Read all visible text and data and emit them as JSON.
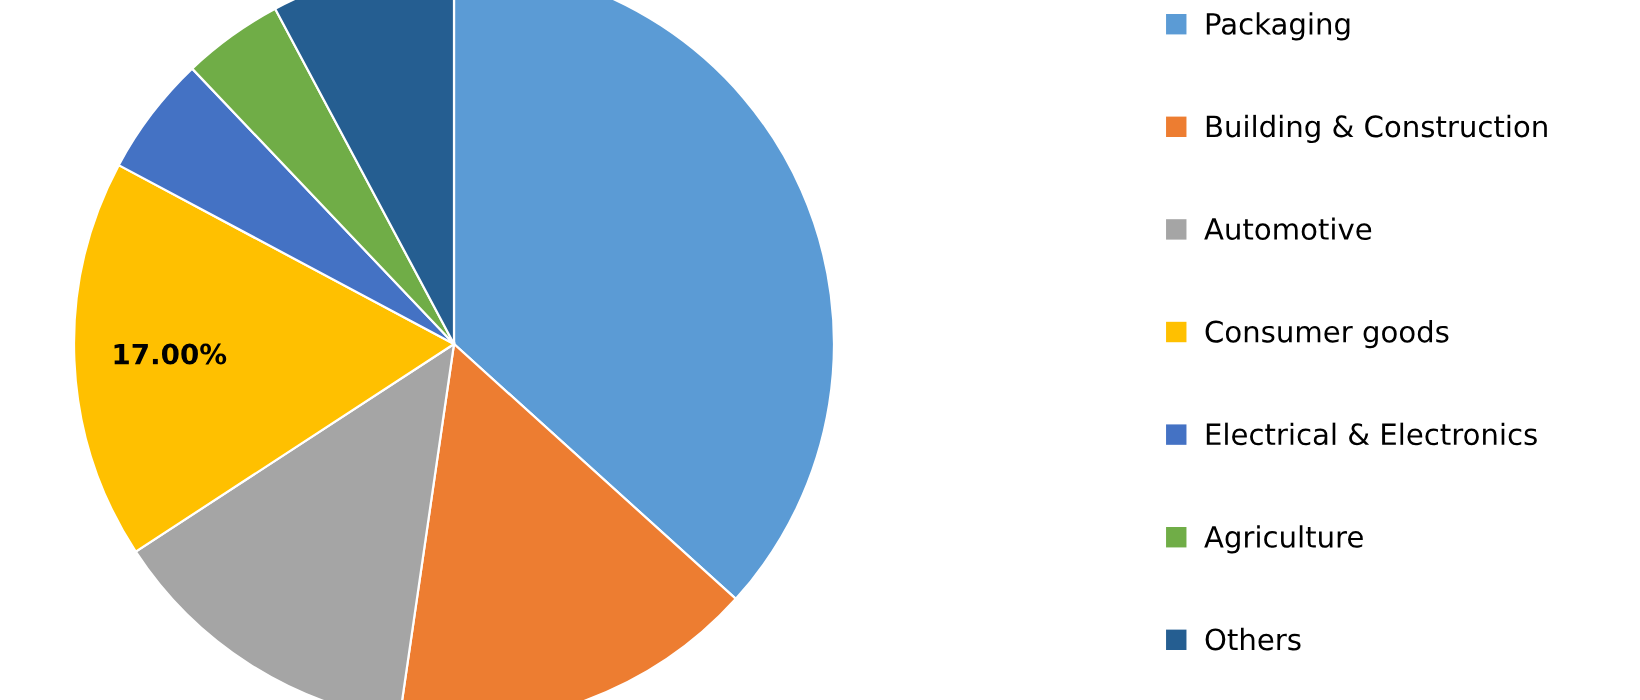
{
  "chart_data": {
    "type": "pie",
    "categories": [
      "Packaging",
      "Building & Construction",
      "Automotive",
      "Consumer goods",
      "Electrical & Electronics",
      "Agriculture",
      "Others"
    ],
    "values": [
      36.7,
      15.6,
      13.5,
      17,
      5.1,
      4.3,
      7.8
    ],
    "colors": [
      "#5b9bd5",
      "#ed7d31",
      "#a5a5a5",
      "#ffc000",
      "#4472c4",
      "#70ad47",
      "#255e91"
    ],
    "value_labels": [
      null,
      null,
      null,
      "17.00%",
      null,
      null,
      null
    ],
    "legend": "right"
  }
}
